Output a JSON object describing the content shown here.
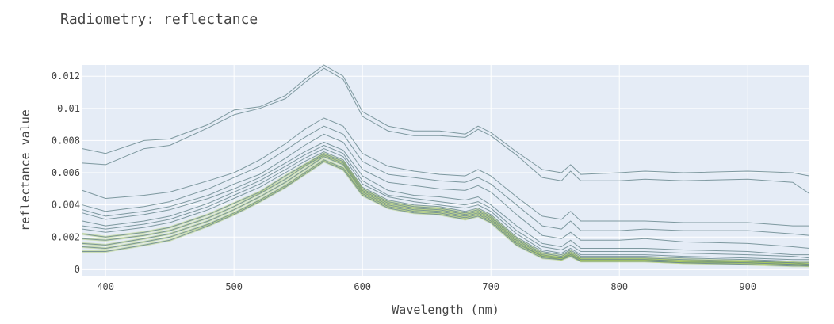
{
  "chart_data": {
    "type": "line",
    "title": "Radiometry: reflectance",
    "xlabel": "Wavelength (nm)",
    "ylabel": "reflectance value",
    "xlim": [
      382,
      948
    ],
    "ylim": [
      -0.0004,
      0.0127
    ],
    "x_ticks": [
      400,
      500,
      600,
      700,
      800,
      900
    ],
    "x_tick_labels": [
      "400",
      "500",
      "600",
      "700",
      "800",
      "900"
    ],
    "y_ticks": [
      0,
      0.002,
      0.004,
      0.006,
      0.008,
      0.01,
      0.012
    ],
    "y_tick_labels": [
      "0",
      "0.002",
      "0.004",
      "0.006",
      "0.008",
      "0.01",
      "0.012"
    ],
    "grid": true,
    "legend": "none",
    "colors": {
      "plot_bg": "#e5ecf6",
      "grid": "#ffffff",
      "line_gray": "#6b8a8f",
      "line_green": "#9dc440"
    },
    "x": [
      382,
      400,
      430,
      450,
      480,
      500,
      520,
      540,
      555,
      570,
      585,
      600,
      620,
      640,
      660,
      680,
      690,
      700,
      720,
      740,
      755,
      762,
      770,
      800,
      820,
      850,
      900,
      935,
      948
    ],
    "series": [
      {
        "values": [
          0.0075,
          0.0072,
          0.008,
          0.0081,
          0.009,
          0.0099,
          0.0101,
          0.0108,
          0.0118,
          0.0127,
          0.012,
          0.0098,
          0.0089,
          0.0086,
          0.0086,
          0.0084,
          0.0089,
          0.0085,
          0.0073,
          0.0062,
          0.006,
          0.0065,
          0.0059,
          0.006,
          0.0061,
          0.006,
          0.0061,
          0.006,
          0.0058
        ]
      },
      {
        "values": [
          0.0066,
          0.0065,
          0.0075,
          0.0077,
          0.0088,
          0.0096,
          0.01,
          0.0106,
          0.0116,
          0.0125,
          0.0118,
          0.0095,
          0.0086,
          0.0083,
          0.0083,
          0.0082,
          0.0087,
          0.0083,
          0.0071,
          0.0057,
          0.0055,
          0.0061,
          0.0055,
          0.0055,
          0.0056,
          0.0055,
          0.0056,
          0.0054,
          0.0047
        ]
      },
      {
        "values": [
          0.0049,
          0.0044,
          0.0046,
          0.0048,
          0.0055,
          0.006,
          0.0068,
          0.0078,
          0.0087,
          0.0094,
          0.0089,
          0.0072,
          0.0064,
          0.0061,
          0.0059,
          0.0058,
          0.0062,
          0.0058,
          0.0045,
          0.0033,
          0.0031,
          0.0036,
          0.003,
          0.003,
          0.003,
          0.0029,
          0.0029,
          0.0027,
          0.0027
        ]
      },
      {
        "values": [
          0.004,
          0.0036,
          0.0039,
          0.0042,
          0.005,
          0.0057,
          0.0064,
          0.0074,
          0.0082,
          0.0089,
          0.0084,
          0.0067,
          0.0059,
          0.0057,
          0.0055,
          0.0054,
          0.0057,
          0.0053,
          0.004,
          0.0027,
          0.0025,
          0.003,
          0.0024,
          0.0024,
          0.0025,
          0.0024,
          0.0024,
          0.0022,
          0.0021
        ]
      },
      {
        "values": [
          0.0037,
          0.0033,
          0.0036,
          0.0039,
          0.0046,
          0.0053,
          0.0059,
          0.0069,
          0.0077,
          0.0084,
          0.0079,
          0.0062,
          0.0054,
          0.0052,
          0.005,
          0.0049,
          0.0052,
          0.0048,
          0.0034,
          0.0021,
          0.0019,
          0.0023,
          0.0018,
          0.0018,
          0.0019,
          0.0017,
          0.0016,
          0.0014,
          0.0013
        ]
      },
      {
        "values": [
          0.0035,
          0.0031,
          0.0034,
          0.0037,
          0.0044,
          0.005,
          0.0057,
          0.0066,
          0.0073,
          0.0079,
          0.0074,
          0.0058,
          0.0049,
          0.0046,
          0.0045,
          0.0043,
          0.0045,
          0.004,
          0.0027,
          0.0016,
          0.0014,
          0.0018,
          0.0013,
          0.0013,
          0.0013,
          0.0012,
          0.0011,
          0.0009,
          0.0009
        ]
      },
      {
        "values": [
          0.003,
          0.0027,
          0.003,
          0.0033,
          0.0041,
          0.0048,
          0.0055,
          0.0064,
          0.0071,
          0.0077,
          0.0072,
          0.0055,
          0.0046,
          0.0044,
          0.0042,
          0.004,
          0.0042,
          0.0038,
          0.0024,
          0.0014,
          0.0012,
          0.0015,
          0.0011,
          0.0011,
          0.0011,
          0.001,
          0.0009,
          0.0008,
          0.0007
        ]
      },
      {
        "values": [
          0.0027,
          0.0025,
          0.0028,
          0.0031,
          0.0039,
          0.0046,
          0.0053,
          0.0062,
          0.0069,
          0.0075,
          0.007,
          0.0053,
          0.0045,
          0.0042,
          0.004,
          0.0038,
          0.004,
          0.0036,
          0.0022,
          0.0012,
          0.001,
          0.0013,
          0.0009,
          0.0009,
          0.0009,
          0.0008,
          0.0007,
          0.0006,
          0.0006
        ]
      },
      {
        "values": [
          0.0025,
          0.0023,
          0.0026,
          0.0029,
          0.0037,
          0.0044,
          0.0051,
          0.006,
          0.0067,
          0.0073,
          0.0068,
          0.0051,
          0.0043,
          0.004,
          0.0039,
          0.0036,
          0.0038,
          0.0034,
          0.002,
          0.0011,
          0.0009,
          0.0012,
          0.0008,
          0.0008,
          0.0008,
          0.0007,
          0.0006,
          0.0005,
          0.0005
        ]
      },
      {
        "values": [
          0.0022,
          0.002,
          0.0023,
          0.0026,
          0.0034,
          0.0041,
          0.0048,
          0.0058,
          0.0065,
          0.0072,
          0.0067,
          0.005,
          0.0042,
          0.0039,
          0.0038,
          0.0035,
          0.0037,
          0.0033,
          0.0019,
          0.001,
          0.0008,
          0.0011,
          0.0007,
          0.0007,
          0.0007,
          0.0006,
          0.0005,
          0.0004,
          0.0004
        ]
      },
      {
        "values": [
          0.0019,
          0.0018,
          0.0021,
          0.0024,
          0.0032,
          0.0039,
          0.0047,
          0.0056,
          0.0064,
          0.0071,
          0.0066,
          0.0049,
          0.0041,
          0.0038,
          0.0037,
          0.0034,
          0.0036,
          0.0032,
          0.0018,
          0.0009,
          0.0007,
          0.001,
          0.0006,
          0.0006,
          0.0006,
          0.0005,
          0.0005,
          0.0004,
          0.0003
        ]
      },
      {
        "values": [
          0.0016,
          0.0015,
          0.0019,
          0.0022,
          0.003,
          0.0037,
          0.0045,
          0.0054,
          0.0062,
          0.007,
          0.0065,
          0.0048,
          0.004,
          0.0037,
          0.0036,
          0.0033,
          0.0035,
          0.0031,
          0.0017,
          0.0008,
          0.0007,
          0.0009,
          0.0006,
          0.0006,
          0.0006,
          0.0005,
          0.0004,
          0.0003,
          0.0003
        ]
      },
      {
        "values": [
          0.0014,
          0.0013,
          0.0017,
          0.002,
          0.0028,
          0.0035,
          0.0043,
          0.0052,
          0.006,
          0.0068,
          0.0063,
          0.0047,
          0.0039,
          0.0036,
          0.0035,
          0.0032,
          0.0034,
          0.003,
          0.0016,
          0.0008,
          0.0006,
          0.0009,
          0.0005,
          0.0005,
          0.0005,
          0.0004,
          0.0004,
          0.0003,
          0.0002
        ]
      },
      {
        "values": [
          0.0011,
          0.0011,
          0.0015,
          0.0018,
          0.0027,
          0.0034,
          0.0042,
          0.0051,
          0.0059,
          0.0067,
          0.0062,
          0.0046,
          0.0038,
          0.0035,
          0.0034,
          0.0031,
          0.0033,
          0.0029,
          0.0015,
          0.0007,
          0.0006,
          0.0008,
          0.0005,
          0.0005,
          0.0005,
          0.0004,
          0.0003,
          0.0002,
          0.0002
        ]
      }
    ]
  }
}
